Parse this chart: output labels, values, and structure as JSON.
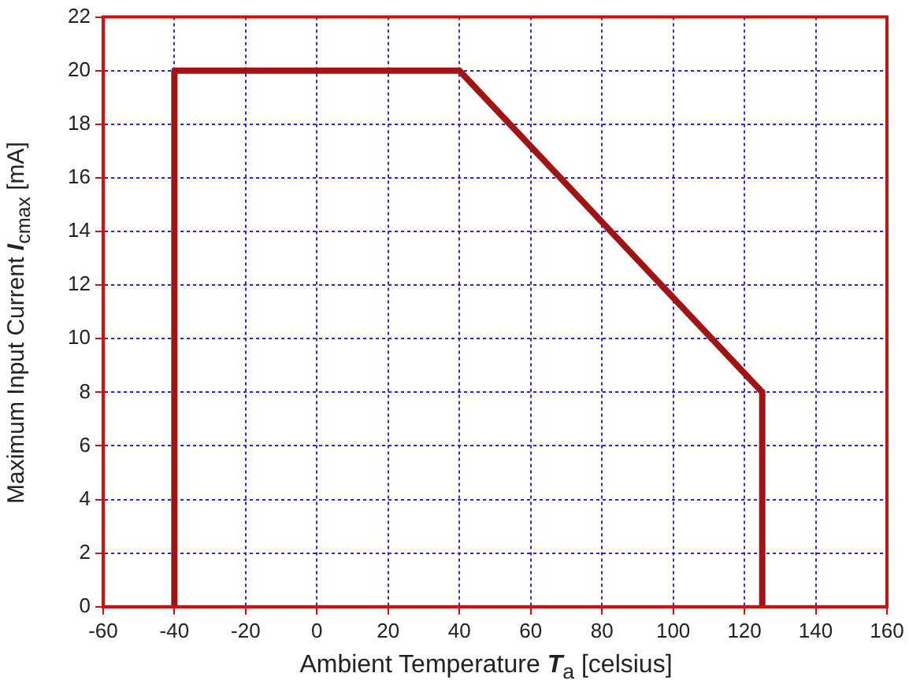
{
  "chart_data": {
    "type": "line",
    "xlabel": "Ambient Temperature T$_{a}$ [celsius]",
    "ylabel": "Maximum Input Current I$_{cmax}$ [mA]",
    "x": [
      -40,
      -40,
      40,
      125,
      125
    ],
    "series": [
      {
        "color": "#a01414",
        "values": [
          0,
          20,
          20,
          8,
          0
        ]
      }
    ],
    "xlim": [
      -60,
      160
    ],
    "xticks": [
      -60,
      -40,
      -20,
      0,
      20,
      40,
      60,
      80,
      100,
      120,
      140,
      160
    ],
    "ylim": [
      0,
      22
    ],
    "yticks": [
      0,
      2,
      4,
      6,
      8,
      10,
      12,
      14,
      16,
      18,
      20,
      22
    ],
    "grid": true,
    "legend": false,
    "marker": "none",
    "line_style": "solid"
  }
}
